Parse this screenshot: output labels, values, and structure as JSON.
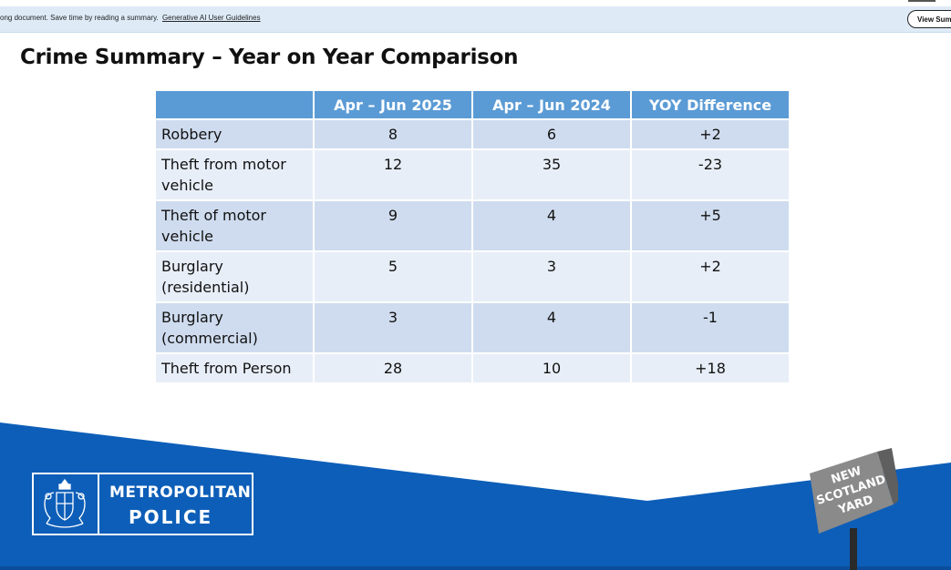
{
  "banner": {
    "message": "ong document. Save time by reading a summary.",
    "link": "Generative AI User Guidelines",
    "button": "View Summary"
  },
  "slide": {
    "title": "Crime Summary – Year on Year Comparison"
  },
  "table": {
    "headers": [
      "",
      "Apr – Jun 2025",
      "Apr – Jun 2024",
      "YOY Difference"
    ],
    "rows": [
      {
        "category": "Robbery",
        "y2025": "8",
        "y2024": "6",
        "diff": "+2"
      },
      {
        "category": "Theft from motor vehicle",
        "y2025": "12",
        "y2024": "35",
        "diff": "-23"
      },
      {
        "category": "Theft of motor vehicle",
        "y2025": "9",
        "y2024": "4",
        "diff": "+5"
      },
      {
        "category": "Burglary (residential)",
        "y2025": "5",
        "y2024": "3",
        "diff": "+2"
      },
      {
        "category": "Burglary (commercial)",
        "y2025": "3",
        "y2024": "4",
        "diff": "-1"
      },
      {
        "category": "Theft from Person",
        "y2025": "28",
        "y2024": "10",
        "diff": "+18"
      }
    ]
  },
  "footer": {
    "logo_line1": "METROPOLITAN",
    "logo_line2": "POLICE",
    "sign_lines": [
      "NEW",
      "SCOTLAND",
      "YARD"
    ],
    "colors": {
      "blue": "#0d5eb8",
      "header": "#5b9bd5",
      "row_dark": "#cfdcef",
      "row_light": "#e8eef8"
    }
  }
}
